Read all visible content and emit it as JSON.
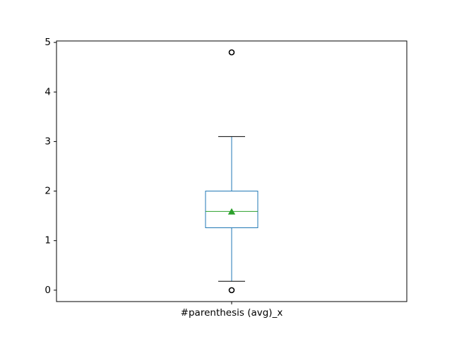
{
  "chart_data": {
    "type": "box",
    "categories": [
      "#parenthesis (avg)_x"
    ],
    "ylim": [
      -0.23,
      5.03
    ],
    "yticks": [
      0,
      1,
      2,
      3,
      4,
      5
    ],
    "grid": false,
    "series": [
      {
        "whisker_low": 0.18,
        "q1": 1.26,
        "median": 1.59,
        "mean": 1.58,
        "q3": 2.0,
        "whisker_high": 3.1,
        "outliers": [
          0.0,
          4.8
        ]
      }
    ]
  },
  "colors": {
    "box": "#1f77b4",
    "median": "#2ca02c",
    "mean": "#2ca02c",
    "caps": "#000000",
    "outlier": "#000000",
    "axes": "#000000"
  }
}
